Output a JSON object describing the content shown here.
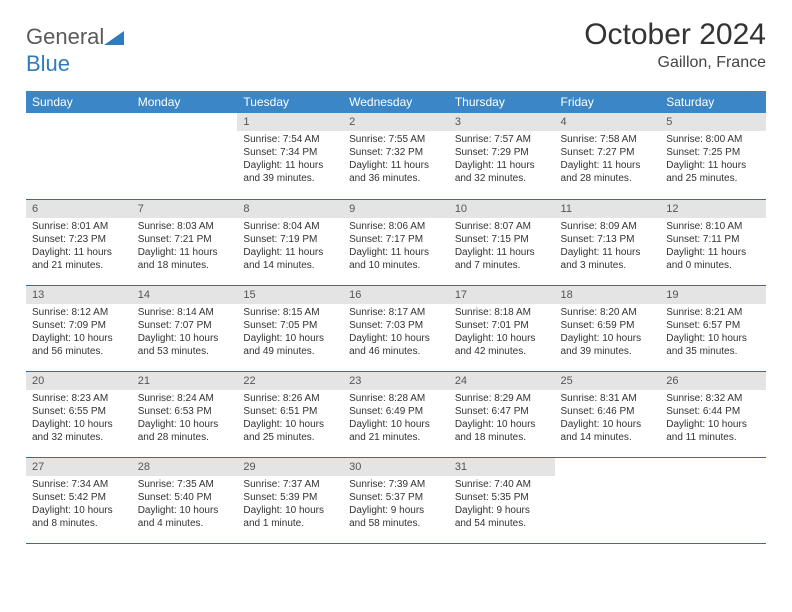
{
  "brand": {
    "part1": "General",
    "part2": "Blue"
  },
  "title": "October 2024",
  "location": "Gaillon, France",
  "colors": {
    "header_bg": "#3b86c6",
    "header_text": "#ffffff",
    "daynum_bg": "#e4e4e4",
    "border": "#2f6fa8",
    "logo_gray": "#5a5a5a",
    "logo_blue": "#2f7bbf"
  },
  "dayNames": [
    "Sunday",
    "Monday",
    "Tuesday",
    "Wednesday",
    "Thursday",
    "Friday",
    "Saturday"
  ],
  "weeks": [
    [
      {
        "n": "",
        "sr": "",
        "ss": "",
        "dl": ""
      },
      {
        "n": "",
        "sr": "",
        "ss": "",
        "dl": ""
      },
      {
        "n": "1",
        "sr": "Sunrise: 7:54 AM",
        "ss": "Sunset: 7:34 PM",
        "dl": "Daylight: 11 hours and 39 minutes."
      },
      {
        "n": "2",
        "sr": "Sunrise: 7:55 AM",
        "ss": "Sunset: 7:32 PM",
        "dl": "Daylight: 11 hours and 36 minutes."
      },
      {
        "n": "3",
        "sr": "Sunrise: 7:57 AM",
        "ss": "Sunset: 7:29 PM",
        "dl": "Daylight: 11 hours and 32 minutes."
      },
      {
        "n": "4",
        "sr": "Sunrise: 7:58 AM",
        "ss": "Sunset: 7:27 PM",
        "dl": "Daylight: 11 hours and 28 minutes."
      },
      {
        "n": "5",
        "sr": "Sunrise: 8:00 AM",
        "ss": "Sunset: 7:25 PM",
        "dl": "Daylight: 11 hours and 25 minutes."
      }
    ],
    [
      {
        "n": "6",
        "sr": "Sunrise: 8:01 AM",
        "ss": "Sunset: 7:23 PM",
        "dl": "Daylight: 11 hours and 21 minutes."
      },
      {
        "n": "7",
        "sr": "Sunrise: 8:03 AM",
        "ss": "Sunset: 7:21 PM",
        "dl": "Daylight: 11 hours and 18 minutes."
      },
      {
        "n": "8",
        "sr": "Sunrise: 8:04 AM",
        "ss": "Sunset: 7:19 PM",
        "dl": "Daylight: 11 hours and 14 minutes."
      },
      {
        "n": "9",
        "sr": "Sunrise: 8:06 AM",
        "ss": "Sunset: 7:17 PM",
        "dl": "Daylight: 11 hours and 10 minutes."
      },
      {
        "n": "10",
        "sr": "Sunrise: 8:07 AM",
        "ss": "Sunset: 7:15 PM",
        "dl": "Daylight: 11 hours and 7 minutes."
      },
      {
        "n": "11",
        "sr": "Sunrise: 8:09 AM",
        "ss": "Sunset: 7:13 PM",
        "dl": "Daylight: 11 hours and 3 minutes."
      },
      {
        "n": "12",
        "sr": "Sunrise: 8:10 AM",
        "ss": "Sunset: 7:11 PM",
        "dl": "Daylight: 11 hours and 0 minutes."
      }
    ],
    [
      {
        "n": "13",
        "sr": "Sunrise: 8:12 AM",
        "ss": "Sunset: 7:09 PM",
        "dl": "Daylight: 10 hours and 56 minutes."
      },
      {
        "n": "14",
        "sr": "Sunrise: 8:14 AM",
        "ss": "Sunset: 7:07 PM",
        "dl": "Daylight: 10 hours and 53 minutes."
      },
      {
        "n": "15",
        "sr": "Sunrise: 8:15 AM",
        "ss": "Sunset: 7:05 PM",
        "dl": "Daylight: 10 hours and 49 minutes."
      },
      {
        "n": "16",
        "sr": "Sunrise: 8:17 AM",
        "ss": "Sunset: 7:03 PM",
        "dl": "Daylight: 10 hours and 46 minutes."
      },
      {
        "n": "17",
        "sr": "Sunrise: 8:18 AM",
        "ss": "Sunset: 7:01 PM",
        "dl": "Daylight: 10 hours and 42 minutes."
      },
      {
        "n": "18",
        "sr": "Sunrise: 8:20 AM",
        "ss": "Sunset: 6:59 PM",
        "dl": "Daylight: 10 hours and 39 minutes."
      },
      {
        "n": "19",
        "sr": "Sunrise: 8:21 AM",
        "ss": "Sunset: 6:57 PM",
        "dl": "Daylight: 10 hours and 35 minutes."
      }
    ],
    [
      {
        "n": "20",
        "sr": "Sunrise: 8:23 AM",
        "ss": "Sunset: 6:55 PM",
        "dl": "Daylight: 10 hours and 32 minutes."
      },
      {
        "n": "21",
        "sr": "Sunrise: 8:24 AM",
        "ss": "Sunset: 6:53 PM",
        "dl": "Daylight: 10 hours and 28 minutes."
      },
      {
        "n": "22",
        "sr": "Sunrise: 8:26 AM",
        "ss": "Sunset: 6:51 PM",
        "dl": "Daylight: 10 hours and 25 minutes."
      },
      {
        "n": "23",
        "sr": "Sunrise: 8:28 AM",
        "ss": "Sunset: 6:49 PM",
        "dl": "Daylight: 10 hours and 21 minutes."
      },
      {
        "n": "24",
        "sr": "Sunrise: 8:29 AM",
        "ss": "Sunset: 6:47 PM",
        "dl": "Daylight: 10 hours and 18 minutes."
      },
      {
        "n": "25",
        "sr": "Sunrise: 8:31 AM",
        "ss": "Sunset: 6:46 PM",
        "dl": "Daylight: 10 hours and 14 minutes."
      },
      {
        "n": "26",
        "sr": "Sunrise: 8:32 AM",
        "ss": "Sunset: 6:44 PM",
        "dl": "Daylight: 10 hours and 11 minutes."
      }
    ],
    [
      {
        "n": "27",
        "sr": "Sunrise: 7:34 AM",
        "ss": "Sunset: 5:42 PM",
        "dl": "Daylight: 10 hours and 8 minutes."
      },
      {
        "n": "28",
        "sr": "Sunrise: 7:35 AM",
        "ss": "Sunset: 5:40 PM",
        "dl": "Daylight: 10 hours and 4 minutes."
      },
      {
        "n": "29",
        "sr": "Sunrise: 7:37 AM",
        "ss": "Sunset: 5:39 PM",
        "dl": "Daylight: 10 hours and 1 minute."
      },
      {
        "n": "30",
        "sr": "Sunrise: 7:39 AM",
        "ss": "Sunset: 5:37 PM",
        "dl": "Daylight: 9 hours and 58 minutes."
      },
      {
        "n": "31",
        "sr": "Sunrise: 7:40 AM",
        "ss": "Sunset: 5:35 PM",
        "dl": "Daylight: 9 hours and 54 minutes."
      },
      {
        "n": "",
        "sr": "",
        "ss": "",
        "dl": ""
      },
      {
        "n": "",
        "sr": "",
        "ss": "",
        "dl": ""
      }
    ]
  ]
}
